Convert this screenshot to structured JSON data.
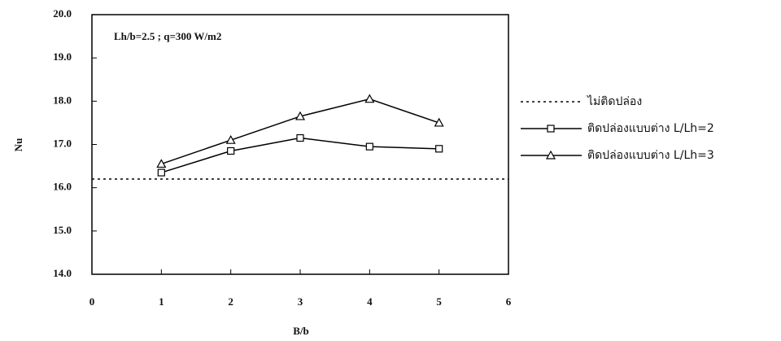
{
  "chart_data": {
    "type": "line",
    "annotation": "Lh/b=2.5 ; q=300 W/m2",
    "xlabel": "B/b",
    "ylabel": "Nu",
    "xlim": [
      0,
      6
    ],
    "xticks": [
      0,
      1,
      2,
      3,
      4,
      5,
      6
    ],
    "ylim": [
      14,
      20
    ],
    "yticks": [
      {
        "value": 14,
        "label": "14.0"
      },
      {
        "value": 15,
        "label": "15.0"
      },
      {
        "value": 16,
        "label": "16.0"
      },
      {
        "value": 17,
        "label": "17.0"
      },
      {
        "value": 18,
        "label": "18.0"
      },
      {
        "value": 19,
        "label": "19.0"
      },
      {
        "value": 20,
        "label": "20.0"
      }
    ],
    "series": [
      {
        "name": "ไม่ติดปล่อง",
        "color": "#000000",
        "dash": "dotted",
        "marker": "none",
        "x": [
          0,
          6
        ],
        "values": [
          16.2,
          16.2
        ]
      },
      {
        "name": "ติดปล่องแบบต่าง L/Lh=2",
        "color": "#000000",
        "dash": "solid",
        "marker": "square",
        "x": [
          1,
          2,
          3,
          4,
          5
        ],
        "values": [
          16.35,
          16.85,
          17.15,
          16.95,
          16.9
        ]
      },
      {
        "name": "ติดปล่องแบบต่าง L/Lh=3",
        "color": "#000000",
        "dash": "solid",
        "marker": "triangle",
        "x": [
          1,
          2,
          3,
          4,
          5
        ],
        "values": [
          16.55,
          17.1,
          17.65,
          18.05,
          17.5
        ]
      }
    ]
  }
}
